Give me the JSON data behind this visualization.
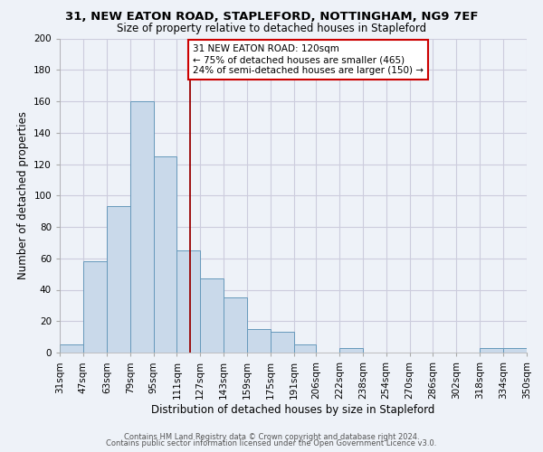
{
  "title": "31, NEW EATON ROAD, STAPLEFORD, NOTTINGHAM, NG9 7EF",
  "subtitle": "Size of property relative to detached houses in Stapleford",
  "xlabel": "Distribution of detached houses by size in Stapleford",
  "ylabel": "Number of detached properties",
  "bar_vals_20": [
    5,
    58,
    93,
    160,
    125,
    65,
    47,
    35,
    15,
    13,
    5,
    0,
    3,
    0,
    0,
    0,
    0,
    0,
    3,
    3
  ],
  "xtick_pos": [
    31,
    47,
    63,
    79,
    95,
    111,
    127,
    143,
    159,
    175,
    191,
    206,
    222,
    238,
    254,
    270,
    286,
    302,
    318,
    334,
    350
  ],
  "bar_color": "#c9d9ea",
  "bar_edge_color": "#6699bb",
  "property_size": 120,
  "red_line_color": "#990000",
  "annotation_text": "31 NEW EATON ROAD: 120sqm\n← 75% of detached houses are smaller (465)\n24% of semi-detached houses are larger (150) →",
  "annotation_box_color": "white",
  "annotation_box_edge_color": "#cc0000",
  "ylim": [
    0,
    200
  ],
  "yticks": [
    0,
    20,
    40,
    60,
    80,
    100,
    120,
    140,
    160,
    180,
    200
  ],
  "xtick_labels": [
    "31sqm",
    "47sqm",
    "63sqm",
    "79sqm",
    "95sqm",
    "111sqm",
    "127sqm",
    "143sqm",
    "159sqm",
    "175sqm",
    "191sqm",
    "206sqm",
    "222sqm",
    "238sqm",
    "254sqm",
    "270sqm",
    "286sqm",
    "302sqm",
    "318sqm",
    "334sqm",
    "350sqm"
  ],
  "footer_line1": "Contains HM Land Registry data © Crown copyright and database right 2024.",
  "footer_line2": "Contains public sector information licensed under the Open Government Licence v3.0.",
  "grid_color": "#ccccdd",
  "bg_color": "#eef2f8",
  "title_fontsize": 9.5,
  "subtitle_fontsize": 8.5,
  "xlabel_fontsize": 8.5,
  "ylabel_fontsize": 8.5,
  "tick_fontsize": 7.5,
  "footer_fontsize": 6.0
}
